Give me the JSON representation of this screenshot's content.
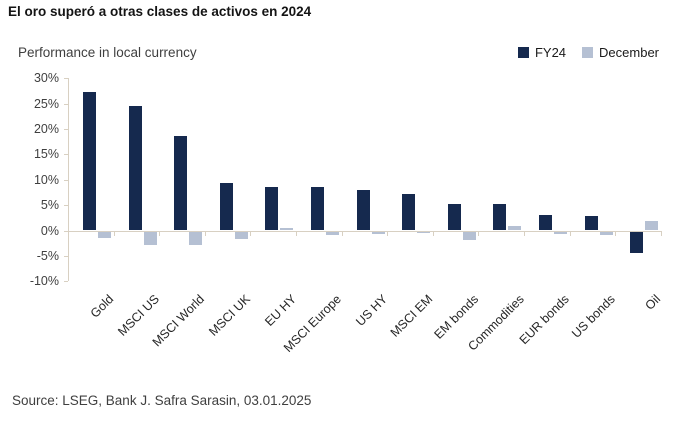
{
  "title": "El oro superó a otras clases de activos en 2024",
  "subtitle": "Performance in local currency",
  "legend": [
    {
      "label": "FY24",
      "color": "#15294e"
    },
    {
      "label": "December",
      "color": "#b5c0d3"
    }
  ],
  "source": "Source: LSEG, Bank J. Safra Sarasin, 03.01.2025",
  "chart_data": {
    "type": "bar",
    "title": "Performance in local currency",
    "categories": [
      "Gold",
      "MSCI US",
      "MSCI World",
      "MSCI UK",
      "EU HY",
      "MSCI Europe",
      "US HY",
      "MSCI EM",
      "EM bonds",
      "Commodities",
      "EUR bonds",
      "US bonds",
      "Oil"
    ],
    "series": [
      {
        "name": "FY24",
        "color": "#15294e",
        "values": [
          27.2,
          24.6,
          18.6,
          9.4,
          8.6,
          8.5,
          8.0,
          7.2,
          5.3,
          5.2,
          3.1,
          2.8,
          -4.2
        ]
      },
      {
        "name": "December",
        "color": "#b5c0d3",
        "values": [
          -1.3,
          -2.7,
          -2.7,
          -1.4,
          0.4,
          -0.6,
          -0.5,
          -0.3,
          -1.6,
          0.8,
          -0.5,
          -0.6,
          1.9
        ]
      }
    ],
    "ylabel": "",
    "xlabel": "",
    "ylim": [
      -10,
      30
    ],
    "yticks": [
      30,
      25,
      20,
      15,
      10,
      5,
      0,
      -5,
      -10
    ],
    "ytick_labels": [
      "30%",
      "25%",
      "20%",
      "15%",
      "10%",
      "5%",
      "0%",
      "-5%",
      "-10%"
    ],
    "grid": false,
    "legend_position": "top-right",
    "axis_color": "#d8d0c2"
  }
}
